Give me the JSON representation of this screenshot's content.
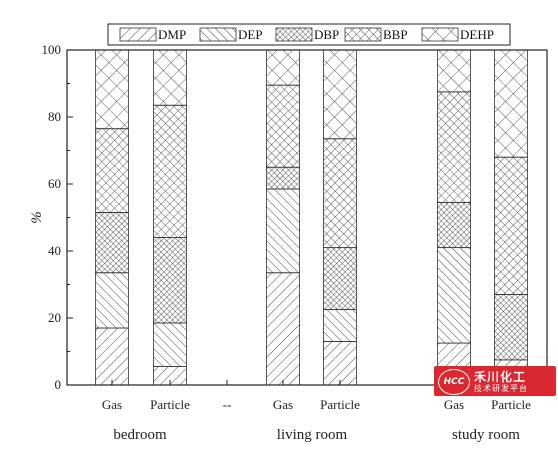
{
  "chart_data": {
    "type": "bar",
    "stacked": true,
    "ylabel": "%",
    "ylim": [
      0,
      100
    ],
    "yticks": [
      0,
      20,
      40,
      60,
      80,
      100
    ],
    "grid": false,
    "legend_position": "top",
    "categories": [
      "Gas",
      "Particle",
      "--",
      "Gas",
      "Particle",
      "Gas",
      "Particle"
    ],
    "groups": [
      {
        "label": "bedroom",
        "categories": [
          "Gas",
          "Particle",
          "--"
        ]
      },
      {
        "label": "living room",
        "categories": [
          "Gas",
          "Particle"
        ]
      },
      {
        "label": "study room",
        "categories": [
          "Gas",
          "Particle"
        ]
      }
    ],
    "series": [
      {
        "name": "DMP",
        "pattern": "hatch-forward",
        "values": [
          17,
          5.5,
          null,
          33.5,
          13,
          12.5,
          7.5
        ]
      },
      {
        "name": "DEP",
        "pattern": "hatch-back",
        "values": [
          16.5,
          13,
          null,
          25,
          9.5,
          28.5,
          0
        ]
      },
      {
        "name": "DBP",
        "pattern": "dense-crosshatch",
        "values": [
          18,
          25.5,
          null,
          6.5,
          18.5,
          13.5,
          19.5
        ]
      },
      {
        "name": "BBP",
        "pattern": "crosshatch",
        "values": [
          25,
          39.5,
          null,
          24.5,
          32.5,
          33,
          41
        ]
      },
      {
        "name": "DEHP",
        "pattern": "wide-crosshatch",
        "values": [
          23.5,
          16.5,
          null,
          10.5,
          26.5,
          12.5,
          32
        ]
      }
    ]
  },
  "watermark": {
    "badge": "HCC",
    "title": "禾川化工",
    "subtitle": "技术研发平台"
  }
}
